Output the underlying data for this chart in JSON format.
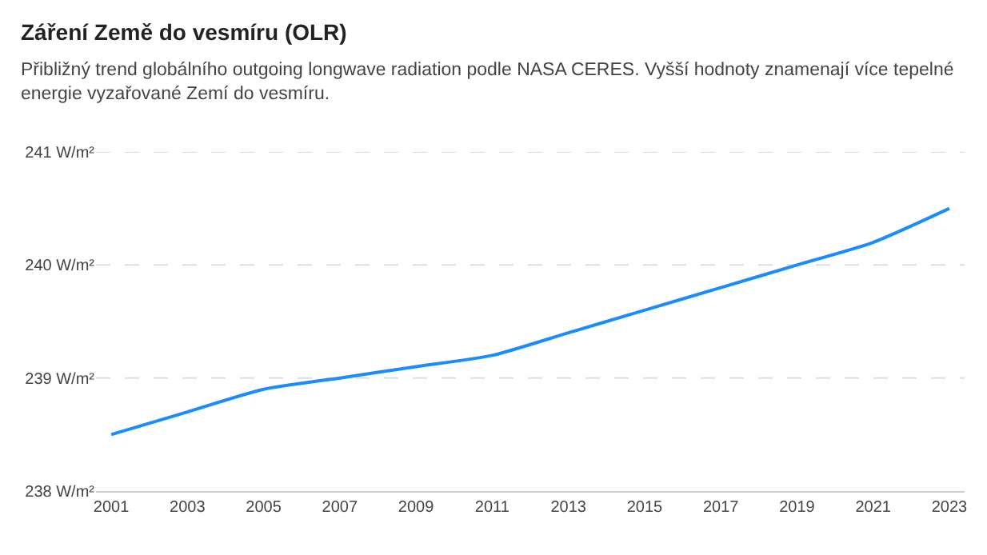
{
  "chart_data": {
    "type": "line",
    "title": "Záření Země do vesmíru (OLR)",
    "subtitle": "Přibližný trend globálního outgoing longwave radiation podle NASA CERES. Vyšší hodnoty znamenají více tepelné\nenergie vyzařované Zemí do vesmíru.",
    "x": [
      2001,
      2003,
      2005,
      2007,
      2009,
      2011,
      2013,
      2015,
      2017,
      2019,
      2021,
      2023
    ],
    "series": [
      {
        "color": "#1a8cff",
        "values": [
          238.5,
          238.7,
          238.9,
          239.0,
          239.1,
          239.2,
          239.4,
          239.6,
          239.8,
          240.0,
          240.2,
          240.5
        ]
      }
    ],
    "xlim": [
      2000.6,
      2023.4
    ],
    "xticks": [
      2001,
      2003,
      2005,
      2007,
      2009,
      2011,
      2013,
      2015,
      2017,
      2019,
      2021,
      2023
    ],
    "ylim": [
      238,
      241
    ],
    "yticks": [
      {
        "value": 238,
        "label": "238 W/m²"
      },
      {
        "value": 239,
        "label": "239 W/m²"
      },
      {
        "value": 240,
        "label": "240 W/m²"
      },
      {
        "value": 241,
        "label": "241 W/m²"
      }
    ],
    "grid": "y",
    "marker": "none",
    "line_style": "solid"
  }
}
